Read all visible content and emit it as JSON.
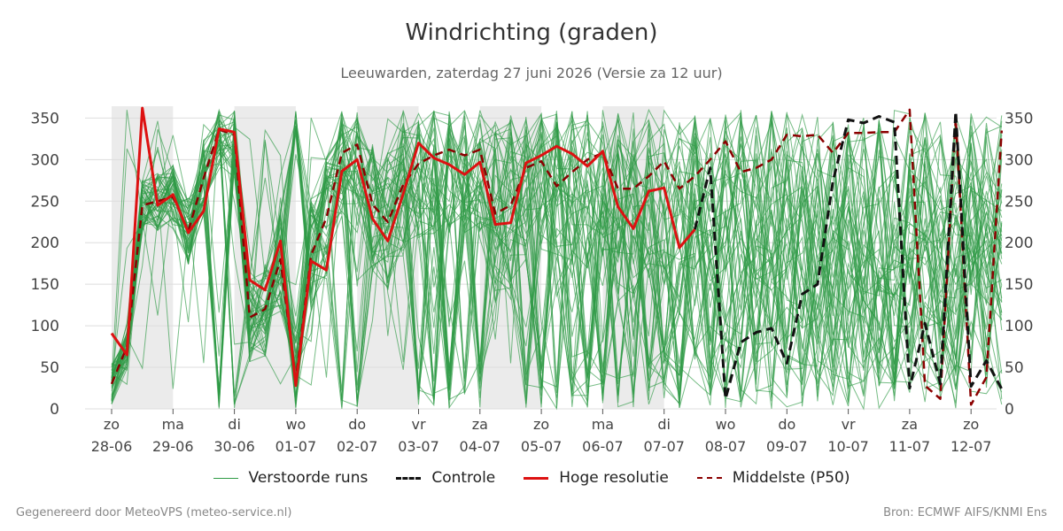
{
  "title": "Windrichting (graden)",
  "subtitle": "Leeuwarden, zaterdag 27 juni 2026 (Versie za 12 uur)",
  "footer": {
    "left": "Gegenereerd door MeteoVPS (meteo-service.nl)",
    "right": "Bron: ECMWF AIFS/KNMI Ens"
  },
  "colors": {
    "ensemble": "#2e9a45",
    "control": "#111111",
    "high_res": "#dd1111",
    "median": "#8b0000",
    "weekend_band": "#ebebeb",
    "grid": "#dddddd"
  },
  "chart_data": {
    "type": "line",
    "title": "Windrichting (graden)",
    "xlabel": "",
    "ylabel": "",
    "ylim": [
      0,
      360
    ],
    "yticks": [
      0,
      50,
      100,
      150,
      200,
      250,
      300,
      350
    ],
    "grid": true,
    "legend_position": "bottom",
    "x_start": "2026-06-28",
    "x_end": "2026-07-12",
    "x_ticks": [
      {
        "date": "2026-06-28",
        "day": "zo",
        "label": "28-06"
      },
      {
        "date": "2026-06-29",
        "day": "ma",
        "label": "29-06"
      },
      {
        "date": "2026-06-30",
        "day": "di",
        "label": "30-06"
      },
      {
        "date": "2026-07-01",
        "day": "wo",
        "label": "01-07"
      },
      {
        "date": "2026-07-02",
        "day": "do",
        "label": "02-07"
      },
      {
        "date": "2026-07-03",
        "day": "vr",
        "label": "03-07"
      },
      {
        "date": "2026-07-04",
        "day": "za",
        "label": "04-07"
      },
      {
        "date": "2026-07-05",
        "day": "zo",
        "label": "05-07"
      },
      {
        "date": "2026-07-06",
        "day": "ma",
        "label": "06-07"
      },
      {
        "date": "2026-07-07",
        "day": "di",
        "label": "07-07"
      },
      {
        "date": "2026-07-08",
        "day": "wo",
        "label": "08-07"
      },
      {
        "date": "2026-07-09",
        "day": "do",
        "label": "09-07"
      },
      {
        "date": "2026-07-10",
        "day": "vr",
        "label": "10-07"
      },
      {
        "date": "2026-07-11",
        "day": "za",
        "label": "11-07"
      },
      {
        "date": "2026-07-12",
        "day": "zo",
        "label": "12-07"
      }
    ],
    "shaded_day_bands": [
      [
        "2026-06-28",
        "2026-06-29"
      ],
      [
        "2026-06-30",
        "2026-07-01"
      ],
      [
        "2026-07-02",
        "2026-07-03"
      ],
      [
        "2026-07-04",
        "2026-07-05"
      ],
      [
        "2026-07-06",
        "2026-07-07"
      ]
    ],
    "legend": [
      {
        "key": "ensemble",
        "label": "Verstoorde runs",
        "style": "thin-solid"
      },
      {
        "key": "control",
        "label": "Controle",
        "style": "dashed"
      },
      {
        "key": "high_res",
        "label": "Hoge resolutie",
        "style": "thick-solid"
      },
      {
        "key": "median",
        "label": "Middelste (P50)",
        "style": "dashed"
      }
    ],
    "high_res": {
      "name": "Hoge resolutie",
      "x": [
        "2026-06-28T00:00",
        "2026-06-28T06:00",
        "2026-06-28T12:00",
        "2026-06-28T18:00",
        "2026-06-29T00:00",
        "2026-06-29T06:00",
        "2026-06-29T12:00",
        "2026-06-29T18:00",
        "2026-06-30T00:00",
        "2026-06-30T06:00",
        "2026-06-30T12:00",
        "2026-06-30T18:00",
        "2026-07-01T00:00",
        "2026-07-01T06:00",
        "2026-07-01T12:00",
        "2026-07-01T18:00",
        "2026-07-02T00:00",
        "2026-07-02T06:00",
        "2026-07-02T12:00",
        "2026-07-02T18:00",
        "2026-07-03T00:00",
        "2026-07-03T06:00",
        "2026-07-03T12:00",
        "2026-07-03T18:00",
        "2026-07-04T00:00",
        "2026-07-04T06:00",
        "2026-07-04T12:00",
        "2026-07-04T18:00",
        "2026-07-05T00:00",
        "2026-07-05T06:00",
        "2026-07-05T12:00",
        "2026-07-05T18:00",
        "2026-07-06T00:00",
        "2026-07-06T06:00",
        "2026-07-06T12:00",
        "2026-07-06T18:00",
        "2026-07-07T00:00",
        "2026-07-07T06:00",
        "2026-07-07T12:00"
      ],
      "y": [
        91,
        65,
        362,
        245,
        258,
        212,
        238,
        337,
        333,
        155,
        143,
        202,
        28,
        178,
        167,
        286,
        300,
        229,
        202,
        259,
        320,
        302,
        294,
        282,
        297,
        222,
        224,
        296,
        305,
        316,
        307,
        292,
        310,
        243,
        217,
        262,
        266,
        194,
        216
      ]
    },
    "control": {
      "name": "Controle",
      "x": [
        "2026-07-07T12:00",
        "2026-07-07T18:00",
        "2026-07-08T00:00",
        "2026-07-08T06:00",
        "2026-07-08T12:00",
        "2026-07-08T18:00",
        "2026-07-09T00:00",
        "2026-07-09T06:00",
        "2026-07-09T12:00",
        "2026-07-09T18:00",
        "2026-07-10T00:00",
        "2026-07-10T06:00",
        "2026-07-10T12:00",
        "2026-07-10T18:00",
        "2026-07-11T00:00",
        "2026-07-11T06:00",
        "2026-07-11T12:00",
        "2026-07-11T18:00",
        "2026-07-12T00:00",
        "2026-07-12T06:00",
        "2026-07-12T12:00"
      ],
      "y": [
        216,
        290,
        12,
        80,
        92,
        97,
        55,
        138,
        150,
        274,
        348,
        344,
        352,
        345,
        25,
        103,
        30,
        358,
        27,
        58,
        24
      ]
    },
    "median": {
      "name": "Middelste (P50)",
      "x": [
        "2026-06-28T00:00",
        "2026-06-28T06:00",
        "2026-06-28T12:00",
        "2026-06-28T18:00",
        "2026-06-29T00:00",
        "2026-06-29T06:00",
        "2026-06-29T12:00",
        "2026-06-29T18:00",
        "2026-06-30T00:00",
        "2026-06-30T06:00",
        "2026-06-30T12:00",
        "2026-06-30T18:00",
        "2026-07-01T00:00",
        "2026-07-01T06:00",
        "2026-07-01T12:00",
        "2026-07-01T18:00",
        "2026-07-02T00:00",
        "2026-07-02T06:00",
        "2026-07-02T12:00",
        "2026-07-02T18:00",
        "2026-07-03T00:00",
        "2026-07-03T06:00",
        "2026-07-03T12:00",
        "2026-07-03T18:00",
        "2026-07-04T00:00",
        "2026-07-04T06:00",
        "2026-07-04T12:00",
        "2026-07-04T18:00",
        "2026-07-05T00:00",
        "2026-07-05T06:00",
        "2026-07-05T12:00",
        "2026-07-05T18:00",
        "2026-07-06T00:00",
        "2026-07-06T06:00",
        "2026-07-06T12:00",
        "2026-07-06T18:00",
        "2026-07-07T00:00",
        "2026-07-07T06:00",
        "2026-07-07T12:00",
        "2026-07-07T18:00",
        "2026-07-08T00:00",
        "2026-07-08T06:00",
        "2026-07-08T12:00",
        "2026-07-08T18:00",
        "2026-07-09T00:00",
        "2026-07-09T06:00",
        "2026-07-09T12:00",
        "2026-07-09T18:00",
        "2026-07-10T00:00",
        "2026-07-10T06:00",
        "2026-07-10T12:00",
        "2026-07-10T18:00",
        "2026-07-11T00:00",
        "2026-07-11T06:00",
        "2026-07-11T12:00",
        "2026-07-11T18:00",
        "2026-07-12T00:00",
        "2026-07-12T06:00",
        "2026-07-12T12:00"
      ],
      "y": [
        30,
        75,
        245,
        250,
        255,
        214,
        278,
        336,
        330,
        110,
        120,
        180,
        35,
        185,
        230,
        308,
        318,
        246,
        225,
        270,
        295,
        305,
        312,
        305,
        312,
        235,
        245,
        290,
        298,
        268,
        285,
        300,
        308,
        265,
        265,
        280,
        298,
        265,
        280,
        300,
        322,
        285,
        290,
        300,
        330,
        328,
        330,
        308,
        332,
        332,
        333,
        333,
        360,
        28,
        12,
        350,
        5,
        38,
        335
      ]
    },
    "ensemble": {
      "name": "Verstoorde runs",
      "members": 50,
      "x_step_hours": 6
    }
  }
}
